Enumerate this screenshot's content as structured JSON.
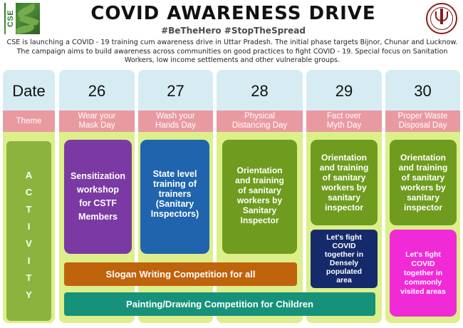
{
  "header": {
    "logo_text": "CSE",
    "title": "COVID AWARENESS DRIVE",
    "hashtags": "#BeTheHero #StopTheSpread",
    "intro": "CSE is launching a COVID - 19 training cum awareness drive in Uttar Pradesh. The initial phase targets Bijnor, Chunar and Lucknow. The campaign aims to build awareness across communities on good practices to fight COVID - 19. Special focus on Sanitation Workers, low income settlements and other vulnerable groups."
  },
  "row_labels": {
    "date": "Date",
    "theme": "Theme",
    "activity_letters": [
      "A",
      "C",
      "T",
      "I",
      "V",
      "I",
      "T",
      "Y"
    ]
  },
  "days": [
    {
      "date": "26",
      "theme": [
        "Wear your",
        "Mask Day"
      ]
    },
    {
      "date": "27",
      "theme": [
        "Wash your",
        "Hands Day"
      ]
    },
    {
      "date": "28",
      "theme": [
        "Physical",
        "Distancing Day"
      ]
    },
    {
      "date": "29",
      "theme": [
        "Fact over",
        "Myth Day"
      ]
    },
    {
      "date": "30",
      "theme": [
        "Proper Waste",
        "Disposal Day"
      ]
    }
  ],
  "activities": {
    "day26": [
      "Sensitization",
      "workshop",
      "for CSTF",
      "Members"
    ],
    "day27": [
      "State level",
      "training of",
      "trainers",
      "(Sanitary",
      "Inspectors)"
    ],
    "day28": [
      "Orientation",
      "and training",
      "of sanitary",
      "workers by",
      "Sanitary",
      "Inspector"
    ],
    "day29_main": [
      "Orientation",
      "and training",
      "of sanitary",
      "workers by",
      "sanitary",
      "inspector"
    ],
    "day29_extra": [
      "Let's fight",
      "COVID",
      "together in",
      "Densely",
      "populated",
      "area"
    ],
    "day30_main": [
      "Orientation",
      "and training",
      "of sanitary",
      "workers by",
      "sanitary",
      "inspector"
    ],
    "day30_extra": [
      "Let's fight",
      "COVID",
      "together in",
      "commonly",
      "visited areas"
    ],
    "slogan": "Slogan Writing Competition for all",
    "painting": "Painting/Drawing Competition for Children"
  },
  "colors": {
    "date_bg": "#d6ecf2",
    "theme_bg": "#e99aa0",
    "column_bg": "#dcef8a",
    "purple": "#7b3aa3",
    "blue": "#1f64ad",
    "green": "#6f9c1e",
    "navy": "#152a6b",
    "magenta": "#f02ad6",
    "orange": "#c0630d",
    "teal": "#17927a"
  }
}
